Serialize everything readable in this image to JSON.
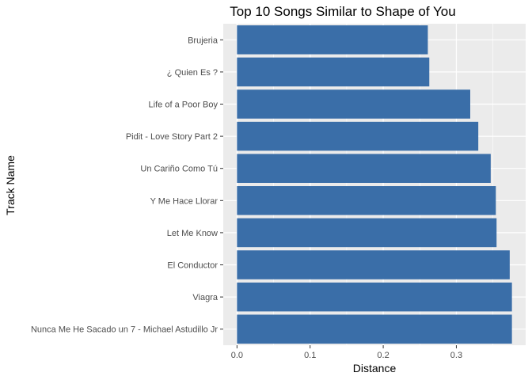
{
  "chart_data": {
    "type": "bar",
    "orientation": "horizontal",
    "title": "Top 10 Songs Similar to Shape of You",
    "xlabel": "Distance",
    "ylabel": "Track Name",
    "categories": [
      "Brujeria",
      "¿ Quien Es ?",
      "Life of a Poor Boy",
      "Pidit - Love Story Part 2",
      "Un Cariño Como Tú",
      "Y Me Hace Llorar",
      "Let Me Know",
      "El Conductor",
      "Viagra",
      "Nunca Me He Sacado un 7 - Michael Astudillo Jr"
    ],
    "values": [
      0.261,
      0.263,
      0.319,
      0.33,
      0.347,
      0.354,
      0.355,
      0.373,
      0.376,
      0.376
    ],
    "xlim": [
      -0.0188,
      0.3948
    ],
    "xticks": [
      0.0,
      0.1,
      0.2,
      0.3
    ],
    "xtick_labels": [
      "0.0",
      "0.1",
      "0.2",
      "0.3"
    ],
    "grid": true,
    "legend": "none",
    "colors": {
      "bar": "#3a6ea8",
      "panel": "#ebebeb",
      "grid": "#ffffff",
      "text": "#000000",
      "tick_text": "#4d4d4d",
      "tick_mark": "#333333"
    }
  }
}
